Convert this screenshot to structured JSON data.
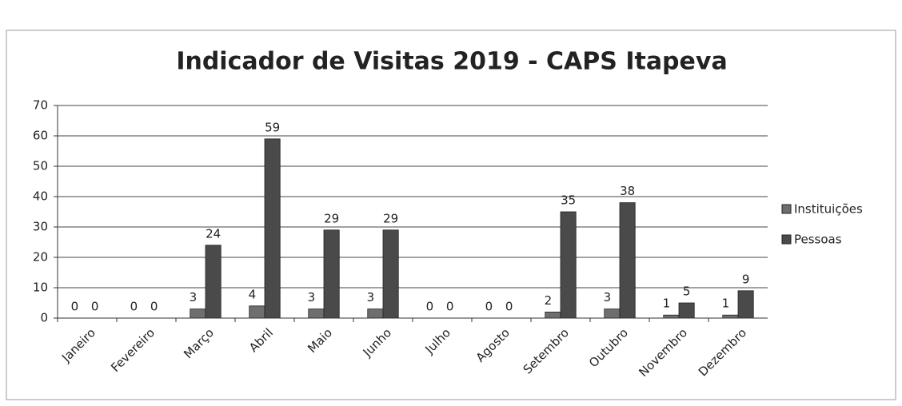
{
  "chart_data": {
    "type": "bar",
    "title": "Indicador de Visitas 2019 - CAPS Itapeva",
    "categories": [
      "Janeiro",
      "Fevereiro",
      "Março",
      "Abril",
      "Maio",
      "Junho",
      "Julho",
      "Agosto",
      "Setembro",
      "Outubro",
      "Novembro",
      "Dezembro"
    ],
    "series": [
      {
        "name": "Instituições",
        "color": "#6e6e6e",
        "values": [
          0,
          0,
          3,
          4,
          3,
          3,
          0,
          0,
          2,
          3,
          1,
          1
        ]
      },
      {
        "name": "Pessoas",
        "color": "#4a4a4a",
        "values": [
          0,
          0,
          24,
          59,
          29,
          29,
          0,
          0,
          35,
          38,
          5,
          9
        ]
      }
    ],
    "ylim": [
      0,
      70
    ],
    "yticks": [
      0,
      10,
      20,
      30,
      40,
      50,
      60,
      70
    ],
    "grid": true,
    "legend": "right"
  }
}
